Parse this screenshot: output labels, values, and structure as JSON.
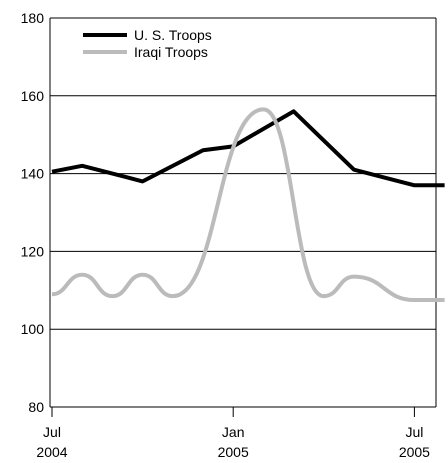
{
  "chart_data": {
    "type": "line",
    "title": "",
    "xlabel": "",
    "ylabel": "",
    "ylim": [
      80,
      180
    ],
    "yticks": [
      80,
      100,
      120,
      140,
      160,
      180
    ],
    "xlim": [
      "2004-07",
      "2005-08"
    ],
    "xticks": [
      {
        "x": "2004-07",
        "label_top": "Jul",
        "label_bottom": "2004"
      },
      {
        "x": "2005-01",
        "label_top": "Jan",
        "label_bottom": "2005"
      },
      {
        "x": "2005-07",
        "label_top": "Jul",
        "label_bottom": "2005"
      }
    ],
    "grid": "horizontal",
    "legend_position": "top-left",
    "series": [
      {
        "name": "U. S. Troops",
        "color": "#000000",
        "points": [
          {
            "x": "2004-07",
            "y": 140.5
          },
          {
            "x": "2004-08",
            "y": 142
          },
          {
            "x": "2004-10",
            "y": 138
          },
          {
            "x": "2004-12",
            "y": 146
          },
          {
            "x": "2005-01",
            "y": 147
          },
          {
            "x": "2005-03",
            "y": 156
          },
          {
            "x": "2005-05",
            "y": 141
          },
          {
            "x": "2005-07",
            "y": 137
          },
          {
            "x": "2005-08",
            "y": 137
          }
        ]
      },
      {
        "name": "Iraqi Troops",
        "color": "#bbbbbb",
        "points": [
          {
            "x": "2004-07",
            "y": 109
          },
          {
            "x": "2004-08",
            "y": 114
          },
          {
            "x": "2004-09",
            "y": 108.5
          },
          {
            "x": "2004-10",
            "y": 114
          },
          {
            "x": "2004-11",
            "y": 108.5
          },
          {
            "x": "2005-02",
            "y": 156.5
          },
          {
            "x": "2005-04",
            "y": 108.5
          },
          {
            "x": "2005-05",
            "y": 113.5
          },
          {
            "x": "2005-07",
            "y": 107.5
          },
          {
            "x": "2005-08",
            "y": 107.5
          }
        ]
      }
    ]
  }
}
